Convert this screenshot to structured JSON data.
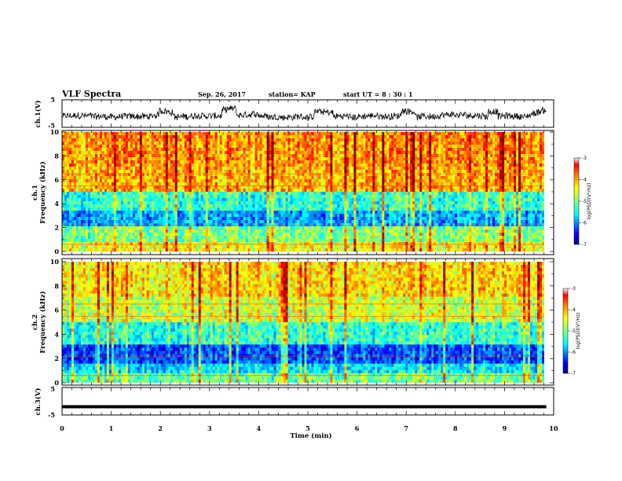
{
  "header": {
    "title": "VLF Spectra",
    "date": "Sep. 26, 2017",
    "station": "station= KAP",
    "start_ut": "start  UT =   8  : 30 : 1"
  },
  "chart_data": [
    {
      "type": "line",
      "id": "ch1-waveform",
      "ylabel": "ch.1(V)",
      "ylim": [
        -5,
        5
      ],
      "ytick_labels": [
        "5",
        "-5"
      ],
      "xlim": [
        0,
        9.85
      ],
      "description_series": "noisy voltage trace around -1 V, occasional excursions toward 0 to +3 V, rising near end"
    },
    {
      "type": "heatmap",
      "id": "ch1-spectrogram",
      "ylabel": "ch.1\nFrequency (kHz)",
      "ylabel_line1": "ch.1",
      "ylabel_line2": "Frequency (kHz)",
      "ylim": [
        0,
        10
      ],
      "ytick_labels": [
        "0",
        "2",
        "4",
        "6",
        "8",
        "10"
      ],
      "xlim": [
        0,
        10
      ],
      "colorbar": {
        "label": "log(PSD)(V²/Hz)",
        "range": [
          -7,
          -3
        ],
        "tick_labels": [
          "-3",
          "-4",
          "-5",
          "-6",
          "-7"
        ]
      }
    },
    {
      "type": "heatmap",
      "id": "ch2-spectrogram",
      "ylabel_line1": "ch.2",
      "ylabel_line2": "Frequency (kHz)",
      "ylim": [
        0,
        10
      ],
      "ytick_labels": [
        "0",
        "2",
        "4",
        "6",
        "8",
        "10"
      ],
      "xlim": [
        0,
        10
      ],
      "colorbar": {
        "label": "log(PSD)(V²/Hz)",
        "range": [
          -7,
          -3
        ],
        "tick_labels": [
          "-3",
          "-4",
          "-5",
          "-6",
          "-7"
        ]
      }
    },
    {
      "type": "line",
      "id": "ch3-waveform",
      "ylabel": "ch.3(V)",
      "ylim": [
        -5,
        5
      ],
      "ytick_labels": [
        "5",
        "-5"
      ],
      "xlim": [
        0,
        9.85
      ],
      "constant_value": -2
    }
  ],
  "xaxis": {
    "label": "Time (min)",
    "tick_labels": [
      "0",
      "1",
      "2",
      "3",
      "4",
      "5",
      "6",
      "7",
      "8",
      "9",
      "10"
    ],
    "range": [
      0,
      10
    ]
  },
  "colors": {
    "jet_stops": [
      "#00007f",
      "#0000ff",
      "#00ffff",
      "#7fff7f",
      "#ffff00",
      "#ff7f00",
      "#ff0000",
      "#ffffff"
    ]
  }
}
